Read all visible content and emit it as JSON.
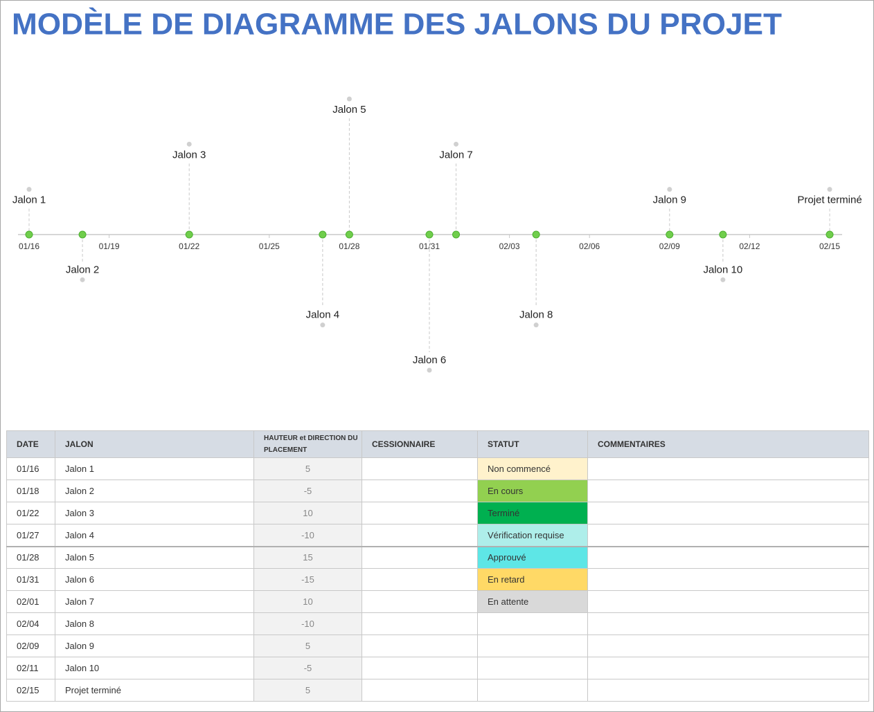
{
  "title": "MODÈLE DE DIAGRAMME DES JALONS DU PROJET",
  "chart_data": {
    "type": "timeline",
    "x": [
      "01/16",
      "01/18",
      "01/22",
      "01/27",
      "01/28",
      "01/31",
      "02/01",
      "02/04",
      "02/09",
      "02/11",
      "02/15"
    ],
    "values": [
      5,
      -5,
      10,
      -10,
      15,
      -15,
      10,
      -10,
      5,
      -5,
      5
    ],
    "labels": [
      "Jalon 1",
      "Jalon 2",
      "Jalon 3",
      "Jalon 4",
      "Jalon 5",
      "Jalon 6",
      "Jalon 7",
      "Jalon 8",
      "Jalon 9",
      "Jalon 10",
      "Projet terminé"
    ],
    "xlim": [
      "01/16",
      "02/15"
    ],
    "xticks": [
      "01/16",
      "01/19",
      "01/22",
      "01/25",
      "01/28",
      "01/31",
      "02/03",
      "02/06",
      "02/09",
      "02/12",
      "02/15"
    ],
    "ylim": [
      -15,
      15
    ],
    "color": "#70ce4c"
  },
  "table": {
    "headers": [
      "DATE",
      "JALON",
      "HAUTEUR et DIRECTION DU PLACEMENT",
      "CESSIONNAIRE",
      "STATUT",
      "COMMENTAIRES"
    ],
    "rows": [
      {
        "date": "01/16",
        "jalon": "Jalon 1",
        "hauteur": 5,
        "statut": {
          "label": "Non commencé",
          "color": "#fff2cc"
        }
      },
      {
        "date": "01/18",
        "jalon": "Jalon 2",
        "hauteur": -5,
        "statut": {
          "label": "En cours",
          "color": "#92d050"
        }
      },
      {
        "date": "01/22",
        "jalon": "Jalon 3",
        "hauteur": 10,
        "statut": {
          "label": "Terminé",
          "color": "#00b050"
        }
      },
      {
        "date": "01/27",
        "jalon": "Jalon 4",
        "hauteur": -10,
        "statut": {
          "label": "Vérification requise",
          "color": "#aeeeea"
        }
      },
      {
        "date": "01/28",
        "jalon": "Jalon 5",
        "hauteur": 15,
        "statut": {
          "label": "Approuvé",
          "color": "#5ee6e6"
        }
      },
      {
        "date": "01/31",
        "jalon": "Jalon 6",
        "hauteur": -15,
        "statut": {
          "label": "En retard",
          "color": "#ffd966"
        }
      },
      {
        "date": "02/01",
        "jalon": "Jalon 7",
        "hauteur": 10,
        "statut": {
          "label": "En attente",
          "color": "#d9d9d9"
        }
      },
      {
        "date": "02/04",
        "jalon": "Jalon 8",
        "hauteur": -10
      },
      {
        "date": "02/09",
        "jalon": "Jalon 9",
        "hauteur": 5
      },
      {
        "date": "02/11",
        "jalon": "Jalon 10",
        "hauteur": -5
      },
      {
        "date": "02/15",
        "jalon": "Projet terminé",
        "hauteur": 5
      }
    ]
  }
}
